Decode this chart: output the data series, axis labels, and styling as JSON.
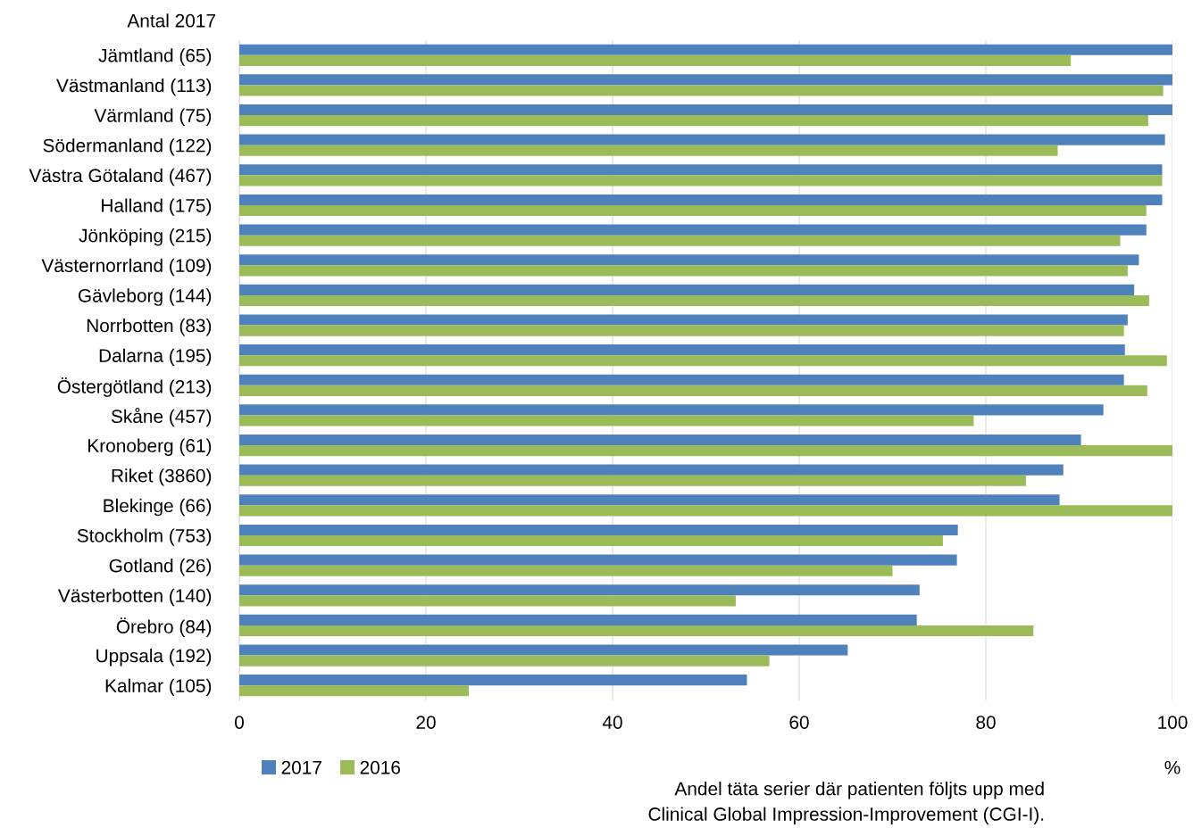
{
  "chart_data": {
    "type": "bar",
    "orientation": "horizontal",
    "categories": [
      "Jämtland (65)",
      "Västmanland (113)",
      "Värmland (75)",
      "Södermanland (122)",
      "Västra Götaland (467)",
      "Halland (175)",
      "Jönköping (215)",
      "Västernorrland (109)",
      "Gävleborg (144)",
      "Norrbotten (83)",
      "Dalarna (195)",
      "Östergötland (213)",
      "Skåne (457)",
      "Kronoberg (61)",
      "Riket (3860)",
      "Blekinge (66)",
      "Stockholm (753)",
      "Gotland (26)",
      "Västerbotten (140)",
      "Örebro (84)",
      "Uppsala (192)",
      "Kalmar (105)"
    ],
    "series": [
      {
        "name": "2017",
        "color": "#4f81bd",
        "values": [
          100,
          100,
          100,
          99.2,
          98.9,
          98.9,
          97.2,
          96.4,
          95.9,
          95.2,
          94.9,
          94.8,
          92.6,
          90.2,
          88.3,
          87.9,
          77.0,
          76.9,
          72.9,
          72.6,
          65.2,
          54.4
        ]
      },
      {
        "name": "2016",
        "color": "#9bbb59",
        "values": [
          89.1,
          99.0,
          97.4,
          87.7,
          98.9,
          97.2,
          94.4,
          95.2,
          97.5,
          94.8,
          99.4,
          97.3,
          78.7,
          100,
          84.3,
          100,
          75.4,
          70.0,
          53.2,
          85.1,
          56.8,
          24.6
        ]
      }
    ],
    "xlim": [
      0,
      100
    ],
    "xticks": [
      0,
      20,
      40,
      60,
      80,
      100
    ],
    "xlabel": "%",
    "grid": "x",
    "legend": "bottom left",
    "annotations": [
      "Antal 2017",
      "Andel täta serier där patienten följts upp med\nClinical Global Impression-Improvement (CGI-I)."
    ]
  }
}
